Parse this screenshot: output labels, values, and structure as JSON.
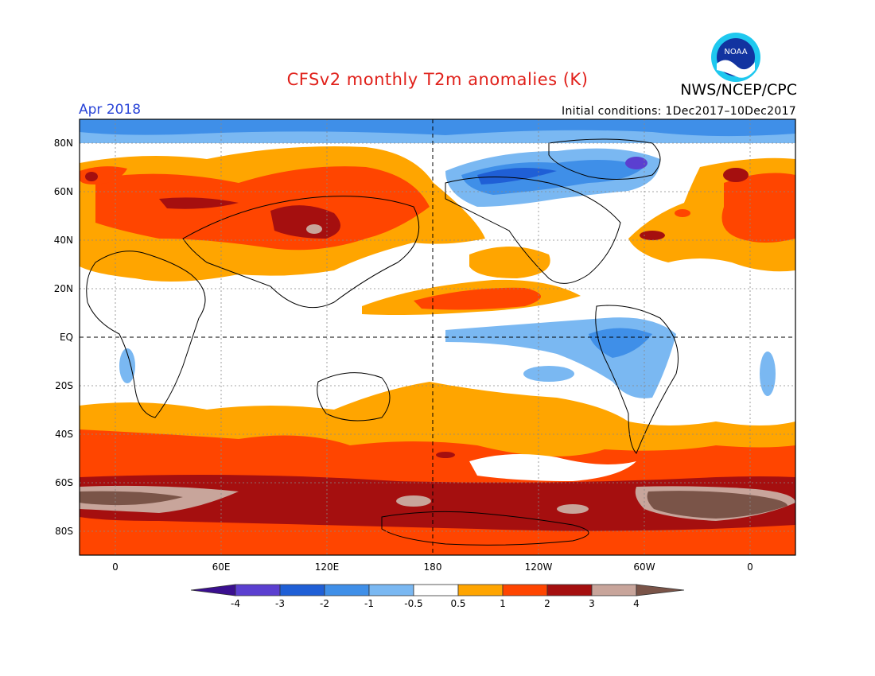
{
  "header": {
    "title": "CFSv2 monthly T2m anomalies (K)",
    "agency": "NWS/NCEP/CPC",
    "logo_text": "NOAA",
    "period": "Apr 2018",
    "initial_conditions": "Initial conditions: 1Dec2017–10Dec2017"
  },
  "axes": {
    "lat_labels": [
      "80N",
      "60N",
      "40N",
      "20N",
      "EQ",
      "20S",
      "40S",
      "60S",
      "80S"
    ],
    "lon_labels": [
      "0",
      "60E",
      "120E",
      "180",
      "120W",
      "60W",
      "0"
    ]
  },
  "colorbar": {
    "labels": [
      "-4",
      "-3",
      "-2",
      "-1",
      "-0.5",
      "0.5",
      "1",
      "2",
      "3",
      "4"
    ],
    "colors": {
      "below_-4": "#3a0f8f",
      "-4_-3": "#5b3fd0",
      "-3_-2": "#1f5fd6",
      "-2_-1": "#3f8fe8",
      "-1_-0.5": "#7ab8f2",
      "-0.5_0.5": "#ffffff",
      "0.5_1": "#ffa500",
      "1_2": "#ff4500",
      "2_3": "#a50f0f",
      "3_4": "#c8a59b",
      "above_4": "#7a5448"
    }
  }
}
